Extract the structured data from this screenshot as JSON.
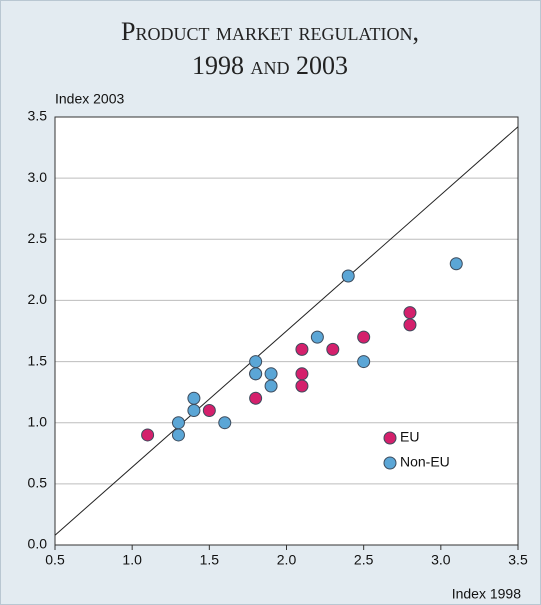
{
  "chart_data": {
    "type": "scatter",
    "title": [
      "Product market regulation,",
      "1998 and 2003"
    ],
    "y_label": "Index 2003",
    "x_label": "Index 1998",
    "xlim": [
      0.5,
      3.5
    ],
    "ylim": [
      0,
      3.5
    ],
    "xticks": [
      0.5,
      {
        "value": 1,
        "label": "1.0"
      },
      1.5,
      {
        "value": 2,
        "label": "2.0"
      },
      2.5,
      {
        "value": 3,
        "label": "3.0"
      },
      3.5
    ],
    "yticks": [
      {
        "value": 0,
        "label": "0.0"
      },
      0.5,
      {
        "value": 1,
        "label": "1.0"
      },
      1.5,
      {
        "value": 2,
        "label": "2.0"
      },
      2.5,
      {
        "value": 3,
        "label": "3.0"
      },
      3.5
    ],
    "grid": true,
    "legend": "lower right",
    "reference_line": {
      "x": [
        0.5,
        3.5
      ],
      "y": [
        0.08,
        3.42
      ],
      "color": "#222222"
    },
    "series": [
      {
        "name": "EU",
        "color": "#d4206c",
        "x": [
          1.1,
          1.5,
          1.8,
          1.8,
          2.1,
          2.1,
          2.1,
          2.3,
          2.5,
          2.8,
          2.8
        ],
        "values": [
          0.9,
          1.1,
          1.2,
          1.4,
          1.6,
          1.4,
          1.3,
          1.6,
          1.7,
          1.9,
          1.8
        ]
      },
      {
        "name": "Non-EU",
        "color": "#5ba6d6",
        "x": [
          1.3,
          1.3,
          1.4,
          1.4,
          1.6,
          1.8,
          1.8,
          1.9,
          1.9,
          2.2,
          2.4,
          2.5,
          3.1
        ],
        "values": [
          1.0,
          0.9,
          1.2,
          1.1,
          1.0,
          1.5,
          1.4,
          1.4,
          1.3,
          1.7,
          2.2,
          1.5,
          2.3
        ]
      }
    ]
  }
}
